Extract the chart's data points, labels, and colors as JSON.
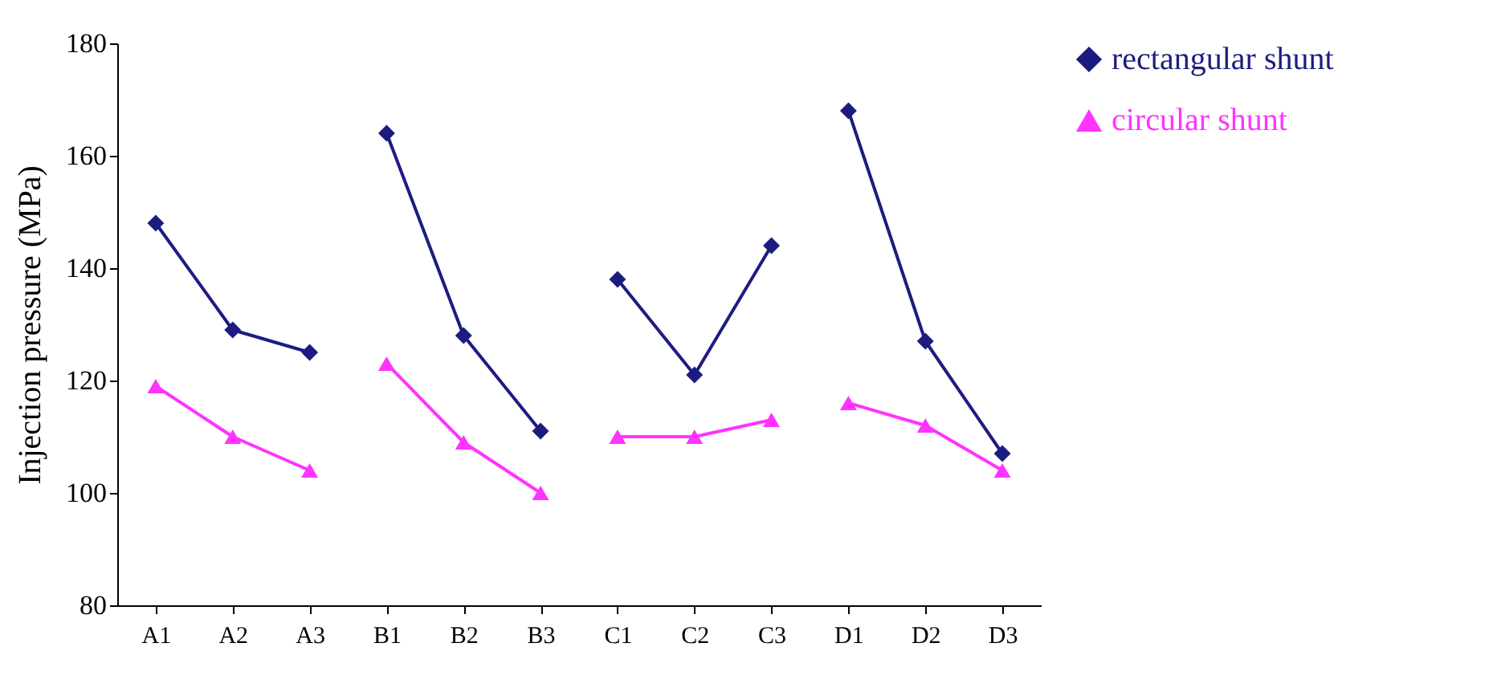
{
  "chart_data": {
    "type": "line",
    "ylabel": "Injection pressure (MPa)",
    "categories": [
      "A1",
      "A2",
      "A3",
      "B1",
      "B2",
      "B3",
      "C1",
      "C2",
      "C3",
      "D1",
      "D2",
      "D3"
    ],
    "ylim": [
      80,
      180
    ],
    "yticks": [
      80,
      100,
      120,
      140,
      160,
      180
    ],
    "grid": false,
    "legend": "top right",
    "series": [
      {
        "name": "rectangular shunt",
        "color": "#1c1c80",
        "marker": "diamond",
        "values": [
          148,
          129,
          125,
          null,
          null,
          null,
          null,
          null,
          null,
          null,
          null,
          null
        ]
      },
      {
        "color": "#1c1c80",
        "marker": "diamond",
        "values": [
          null,
          null,
          null,
          164,
          128,
          111,
          null,
          null,
          null,
          null,
          null,
          null
        ]
      },
      {
        "color": "#1c1c80",
        "marker": "diamond",
        "values": [
          null,
          null,
          null,
          null,
          null,
          null,
          138,
          121,
          144,
          null,
          null,
          null
        ]
      },
      {
        "color": "#1c1c80",
        "marker": "diamond",
        "values": [
          null,
          null,
          null,
          null,
          null,
          null,
          null,
          null,
          null,
          168,
          127,
          107
        ]
      },
      {
        "name": "circular shunt",
        "color": "#ff33ff",
        "marker": "triangle",
        "values": [
          119,
          110,
          104,
          null,
          null,
          null,
          null,
          null,
          null,
          null,
          null,
          null
        ]
      },
      {
        "color": "#ff33ff",
        "marker": "triangle",
        "values": [
          null,
          null,
          null,
          123,
          109,
          100,
          null,
          null,
          null,
          null,
          null,
          null
        ]
      },
      {
        "color": "#ff33ff",
        "marker": "triangle",
        "values": [
          null,
          null,
          null,
          null,
          null,
          null,
          110,
          110,
          113,
          null,
          null,
          null
        ]
      },
      {
        "color": "#ff33ff",
        "marker": "triangle",
        "values": [
          null,
          null,
          null,
          null,
          null,
          null,
          null,
          null,
          null,
          116,
          112,
          104
        ]
      }
    ]
  }
}
